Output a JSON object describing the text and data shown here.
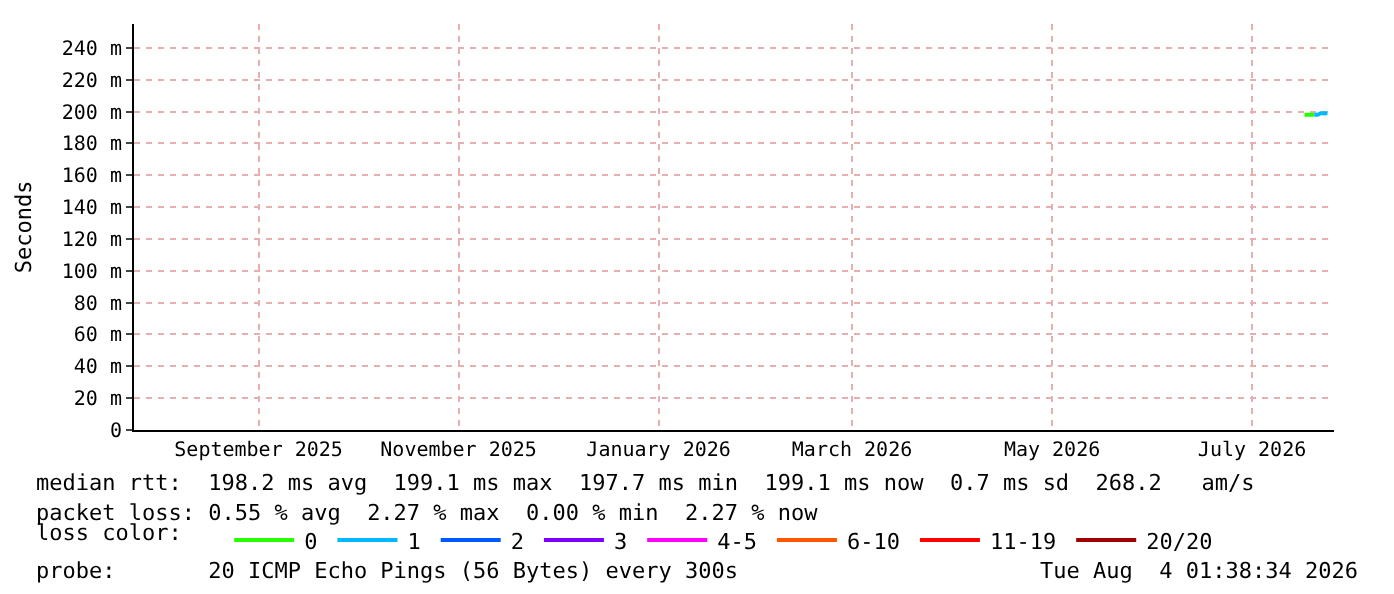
{
  "chart_data": {
    "type": "line",
    "ylabel": "Seconds",
    "legend_title": "loss color:",
    "x": [
      "2026-08-01",
      "2026-08-02",
      "2026-08-03",
      "2026-08-04",
      "2026-08-05",
      "2026-08-06",
      "2026-08-07",
      "2026-08-08"
    ],
    "series": [
      {
        "name": "0",
        "color": "#26ff00",
        "values": [
          198,
          198,
          198,
          198,
          null,
          null,
          null,
          null
        ]
      },
      {
        "name": "1",
        "color": "#00b8ff",
        "values": [
          null,
          null,
          null,
          198,
          198,
          199,
          199,
          199
        ]
      },
      {
        "name": "2",
        "color": "#0059ff",
        "values": [
          null,
          null,
          null,
          null,
          null,
          null,
          null,
          null
        ]
      },
      {
        "name": "3",
        "color": "#7e00ff",
        "values": [
          null,
          null,
          null,
          null,
          null,
          null,
          null,
          null
        ]
      },
      {
        "name": "4-5",
        "color": "#ff00ff",
        "values": [
          null,
          null,
          null,
          null,
          null,
          null,
          null,
          null
        ]
      },
      {
        "name": "6-10",
        "color": "#ff5500",
        "values": [
          null,
          null,
          null,
          null,
          null,
          null,
          null,
          null
        ]
      },
      {
        "name": "11-19",
        "color": "#ff0000",
        "values": [
          null,
          null,
          null,
          null,
          null,
          null,
          null,
          null
        ]
      },
      {
        "name": "20/20",
        "color": "#a10000",
        "values": [
          null,
          null,
          null,
          null,
          null,
          null,
          null,
          null
        ]
      }
    ],
    "xlim": [
      "2025-08-09",
      "2026-08-10"
    ],
    "xticks": [
      {
        "value": "2025-09-16",
        "label": "September 2025"
      },
      {
        "value": "2025-11-16",
        "label": "November 2025"
      },
      {
        "value": "2026-01-16",
        "label": "January 2026"
      },
      {
        "value": "2026-03-16",
        "label": "March 2026"
      },
      {
        "value": "2026-05-16",
        "label": "May 2026"
      },
      {
        "value": "2026-07-16",
        "label": "July 2026"
      }
    ],
    "ylim": [
      0,
      255
    ],
    "yticks": [
      0,
      {
        "value": 20,
        "label": "20 m"
      },
      {
        "value": 40,
        "label": "40 m"
      },
      {
        "value": 60,
        "label": "60 m"
      },
      {
        "value": 80,
        "label": "80 m"
      },
      {
        "value": 100,
        "label": "100 m"
      },
      {
        "value": 120,
        "label": "120 m"
      },
      {
        "value": 140,
        "label": "140 m"
      },
      {
        "value": 160,
        "label": "160 m"
      },
      {
        "value": 180,
        "label": "180 m"
      },
      {
        "value": 200,
        "label": "200 m"
      },
      {
        "value": 220,
        "label": "220 m"
      },
      {
        "value": 240,
        "label": "240 m"
      }
    ],
    "grid": true,
    "legend": "bottom",
    "annotations": [
      "median rtt:  198.2 ms avg  199.1 ms max  197.7 ms min  199.1 ms now  0.7 ms sd  268.2   am/s",
      "packet loss: 0.55 % avg  2.27 % max  0.00 % min  2.27 % now",
      "probe:       20 ICMP Echo Pings (56 Bytes) every 300s",
      "Tue Aug  4 01:38:34 2026"
    ]
  }
}
